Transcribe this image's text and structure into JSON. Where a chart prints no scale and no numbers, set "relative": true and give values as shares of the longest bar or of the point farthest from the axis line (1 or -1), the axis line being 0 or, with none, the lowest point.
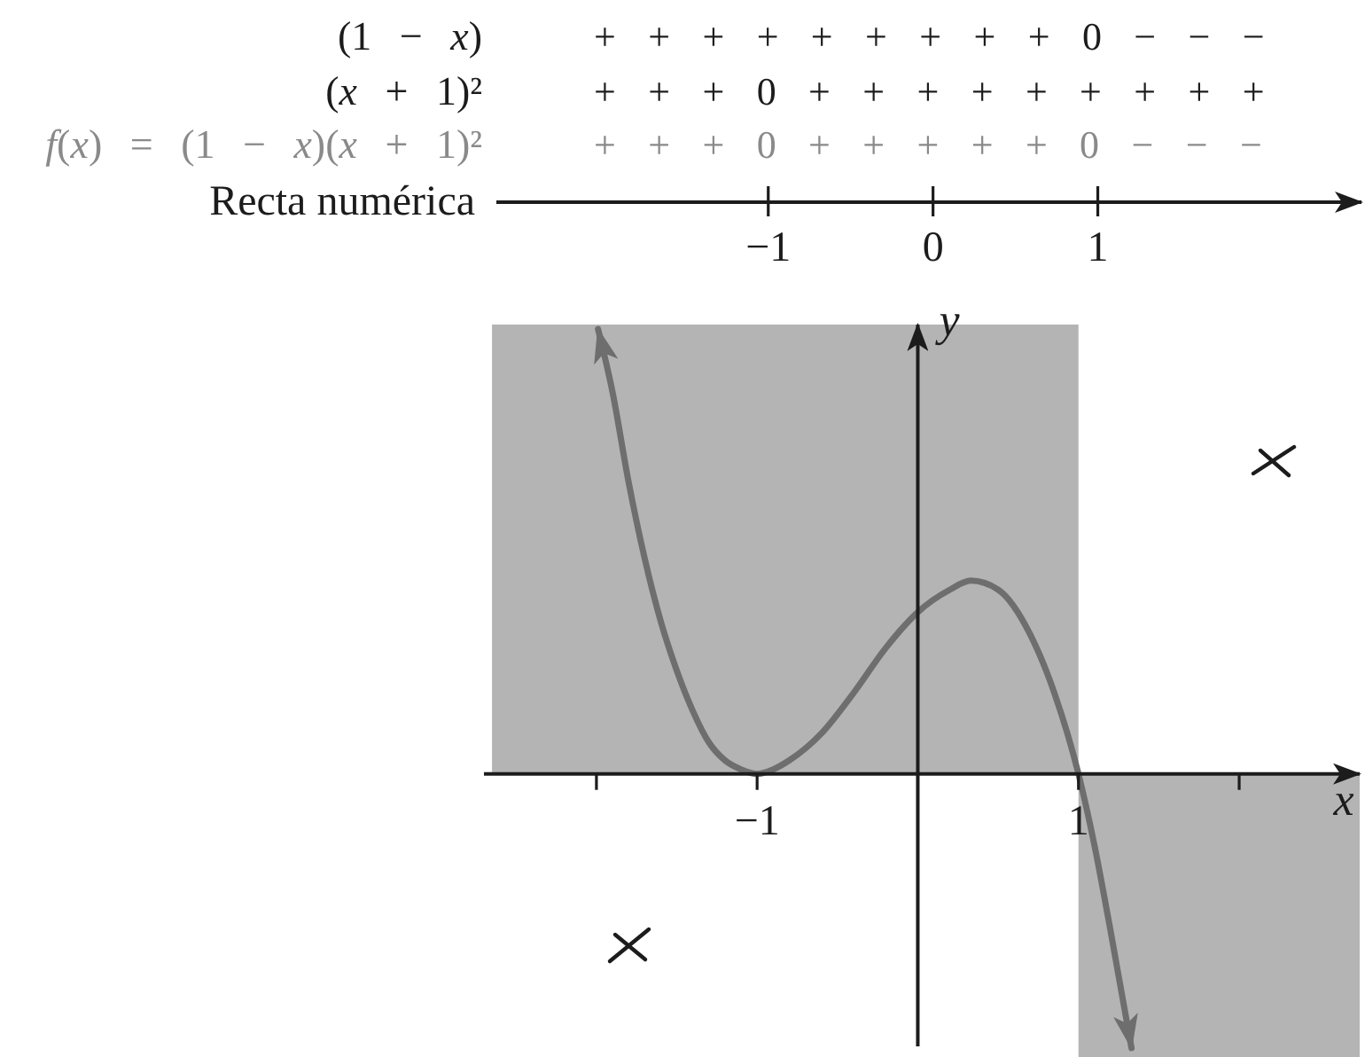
{
  "chart_data": {
    "type": "line",
    "relative": true,
    "xlabel": "x",
    "ylabel": "y",
    "x2label": "Recta numérica",
    "xlim": [
      -2.7,
      2.75
    ],
    "xticks": [
      {
        "value": -2,
        "label": null
      },
      {
        "value": -1,
        "label": "−1"
      },
      1,
      {
        "value": 2,
        "label": null
      }
    ],
    "x2lim": [
      -2.65,
      2.6
    ],
    "x2ticks": [
      {
        "value": -1,
        "label": "−1"
      },
      0,
      1
    ],
    "marker": "none",
    "annotations": [
      "(1 − x)",
      "+ + + + + + + + + 0 − − −",
      "(x + 1)²",
      "+ + + 0 + + + + + + + + +",
      "f(x) = (1 − x)(x + 1)²",
      "+ + + 0 + + + + + 0 − − −"
    ],
    "series": [
      {
        "type": "area",
        "color": "#b4b4b4",
        "x": [
          -2.65,
          1
        ],
        "values": [
          1,
          1
        ]
      },
      {
        "type": "area",
        "color": "#b4b4b4",
        "x": [
          1,
          2.75
        ],
        "values": [
          -0.63,
          -0.63
        ]
      },
      {
        "color": "#6e6e6e",
        "x": [
          -1.99,
          -1.9,
          -1.8,
          -1.7,
          -1.6,
          -1.5,
          -1.4,
          -1.3,
          -1.2,
          -1.1,
          -1,
          -0.9,
          -0.8,
          -0.6,
          -0.4,
          -0.2,
          0,
          0.2,
          0.33,
          0.5,
          0.7,
          0.85,
          1,
          1.1,
          1.2,
          1.33
        ],
        "values": [
          0.99,
          0.85,
          0.65,
          0.48,
          0.34,
          0.23,
          0.14,
          0.07,
          0.03,
          0.01,
          0,
          0.01,
          0.03,
          0.09,
          0.18,
          0.28,
          0.36,
          0.41,
          0.43,
          0.41,
          0.31,
          0.18,
          0,
          -0.16,
          -0.35,
          -0.61
        ]
      }
    ]
  }
}
